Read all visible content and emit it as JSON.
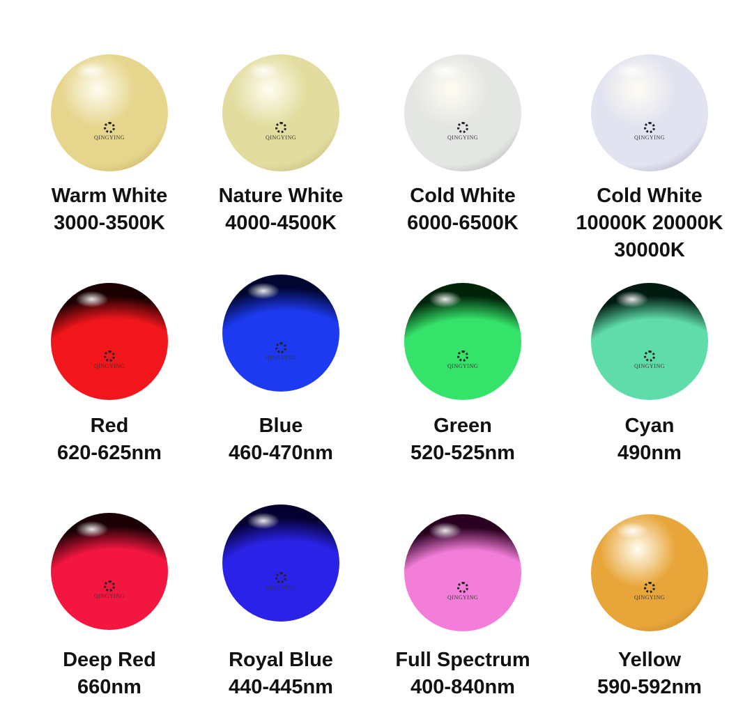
{
  "brand": "QINGYING",
  "items": [
    {
      "name": "Warm White",
      "spec": [
        "3000-3500K"
      ],
      "color": "#e6d58c",
      "top": "#b59e4e",
      "dark": false
    },
    {
      "name": "Nature White",
      "spec": [
        "4000-4500K"
      ],
      "color": "#e2dd9e",
      "top": "#a8a36a",
      "dark": false
    },
    {
      "name": "Cold White",
      "spec": [
        "6000-6500K"
      ],
      "color": "#e4e6e4",
      "top": "#8d8f8d",
      "dark": false
    },
    {
      "name": "Cold White",
      "spec": [
        "10000K 20000K",
        "30000K"
      ],
      "color": "#e2e3f1",
      "top": "#8e8fa3",
      "dark": false
    },
    {
      "name": "Red",
      "spec": [
        "620-625nm"
      ],
      "color": "#f0161c",
      "top": "#1a0000",
      "dark": true
    },
    {
      "name": "Blue",
      "spec": [
        "460-470nm"
      ],
      "color": "#1d3af0",
      "top": "#000630",
      "dark": true
    },
    {
      "name": "Green",
      "spec": [
        "520-525nm"
      ],
      "color": "#35e36a",
      "top": "#002408",
      "dark": true
    },
    {
      "name": "Cyan",
      "spec": [
        "490nm"
      ],
      "color": "#5fdcaa",
      "top": "#001a10",
      "dark": true
    },
    {
      "name": "Deep Red",
      "spec": [
        "660nm"
      ],
      "color": "#f21640",
      "top": "#1a0005",
      "dark": true
    },
    {
      "name": "Royal Blue",
      "spec": [
        "440-445nm"
      ],
      "color": "#2a22e6",
      "top": "#050030",
      "dark": true
    },
    {
      "name": "Full Spectrum",
      "spec": [
        "400-840nm"
      ],
      "color": "#f37ed9",
      "top": "#2a0020",
      "dark": true
    },
    {
      "name": "Yellow",
      "spec": [
        "590-592nm"
      ],
      "color": "#e8a63a",
      "top": "#b07820",
      "dark": false
    }
  ]
}
